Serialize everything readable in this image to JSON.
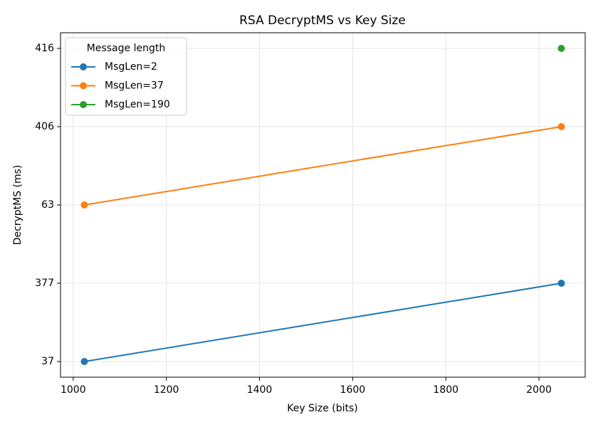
{
  "chart_data": {
    "type": "line",
    "title": "RSA DecryptMS vs Key Size",
    "xlabel": "Key Size (bits)",
    "ylabel": "DecryptMS (ms)",
    "x": [
      1024,
      2048
    ],
    "xlim": [
      972.8,
      2099.2
    ],
    "xticks": [
      1000,
      1200,
      1400,
      1600,
      1800,
      2000
    ],
    "ycategories": [
      37,
      377,
      63,
      406,
      416
    ],
    "series": [
      {
        "name": "MsgLen=2",
        "color": "#1f77b4",
        "values": [
          37,
          377
        ]
      },
      {
        "name": "MsgLen=37",
        "color": "#ff7f0e",
        "values": [
          63,
          406
        ]
      },
      {
        "name": "MsgLen=190",
        "color": "#2ca02c",
        "values": [
          null,
          416
        ]
      }
    ],
    "legend_title": "Message length",
    "legend": "upper left",
    "grid": true
  }
}
